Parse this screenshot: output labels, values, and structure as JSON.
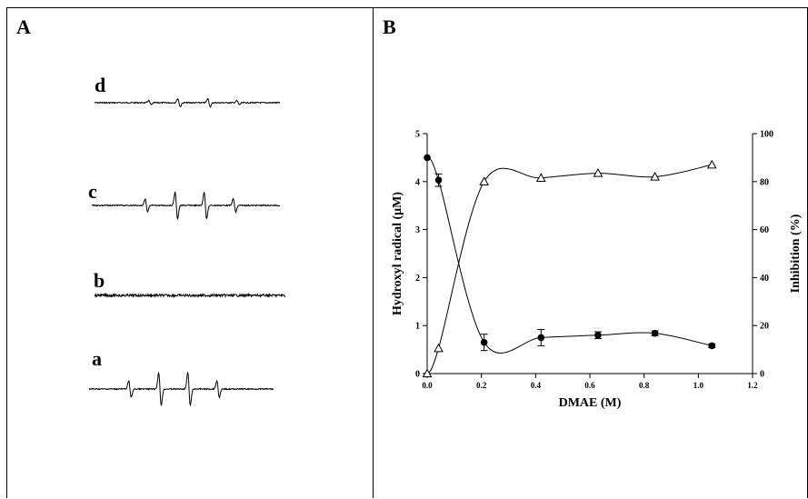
{
  "panel_a": {
    "letter": "A",
    "traces": [
      {
        "label": "d",
        "amplitude": 0.55
      },
      {
        "label": "c",
        "amplitude": 1.0
      },
      {
        "label": "b",
        "amplitude": 0.0
      },
      {
        "label": "a",
        "amplitude": 1.0
      }
    ]
  },
  "panel_b": {
    "letter": "B"
  },
  "chart_data": {
    "type": "line",
    "title": "",
    "xlabel": "DMAE (M)",
    "ylabel": "Hydroxyl radical (μM)",
    "y2label": "Inhibition (%)",
    "xlim": [
      0.0,
      1.2
    ],
    "ylim": [
      0,
      5
    ],
    "y2lim": [
      0,
      100
    ],
    "x_ticks": [
      "0.0",
      "0.2",
      "0.4",
      "0.6",
      "0.8",
      "1.0",
      "1.2"
    ],
    "y_ticks": [
      "0",
      "1",
      "2",
      "3",
      "4",
      "5"
    ],
    "y2_ticks": [
      "0",
      "20",
      "40",
      "60",
      "80",
      "100"
    ],
    "grid": false,
    "series": [
      {
        "marker": "filled-circle",
        "axis": "left",
        "x": [
          0.0,
          0.042,
          0.21,
          0.42,
          0.63,
          0.84,
          1.05
        ],
        "y": [
          4.5,
          4.03,
          0.65,
          0.75,
          0.8,
          0.84,
          0.58
        ],
        "err": [
          0,
          0.13,
          0.17,
          0.17,
          0.07,
          0.05,
          0.04
        ]
      },
      {
        "marker": "open-triangle",
        "axis": "right",
        "x": [
          0.0,
          0.042,
          0.21,
          0.42,
          0.63,
          0.84,
          1.05
        ],
        "y": [
          0,
          10.5,
          80,
          81.5,
          83.5,
          82,
          87
        ]
      }
    ]
  }
}
